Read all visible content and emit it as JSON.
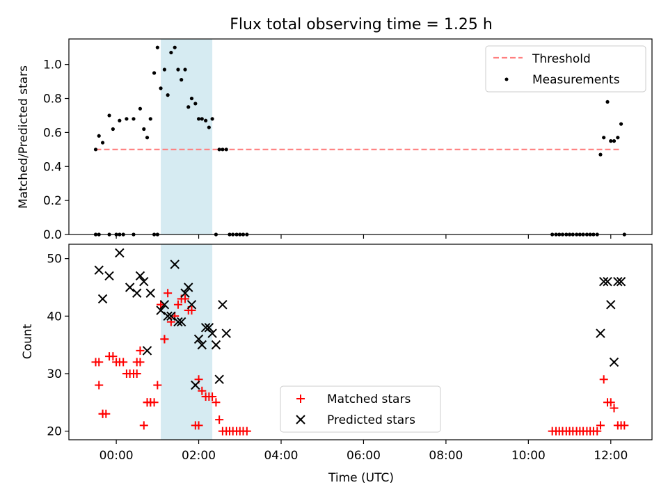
{
  "title": "Flux total observing time = 1.25 h",
  "colors": {
    "highlight": "#add8e6",
    "threshold": "#ff7f7f",
    "measurement": "#000000",
    "matched": "#ff0000",
    "predicted": "#000000"
  },
  "chart_data": [
    {
      "type": "scatter",
      "ylabel": "Matched/Predicted stars",
      "ylim": [
        0,
        1.15
      ],
      "yticks": [
        0.0,
        0.2,
        0.4,
        0.6,
        0.8,
        1.0
      ],
      "ytick_labels": [
        "0.0",
        "0.2",
        "0.4",
        "0.6",
        "0.8",
        "1.0"
      ],
      "x_unit": "hours since 00:00 UTC",
      "xlim": [
        -1.15,
        13.0
      ],
      "highlight_span": [
        1.08,
        2.33
      ],
      "legend_position": "upper right",
      "series": [
        {
          "name": "Threshold",
          "style": "dashed-line",
          "x": [
            -0.5,
            12.25
          ],
          "y": [
            0.5,
            0.5
          ]
        },
        {
          "name": "Measurements",
          "style": "dot",
          "x": [
            -0.5,
            -0.42,
            -0.33,
            -0.17,
            -0.08,
            0.08,
            0.25,
            0.42,
            0.58,
            0.67,
            0.75,
            0.83,
            0.92,
            1.0,
            1.08,
            1.17,
            1.25,
            1.33,
            1.42,
            1.5,
            1.58,
            1.67,
            1.75,
            1.83,
            1.92,
            2.0,
            2.08,
            2.17,
            2.25,
            2.33,
            2.5,
            2.58,
            2.67,
            -0.5,
            -0.42,
            -0.17,
            0.0,
            0.08,
            0.17,
            0.42,
            0.92,
            1.0,
            2.42,
            2.75,
            2.83,
            2.92,
            3.0,
            3.08,
            3.17,
            10.58,
            10.67,
            10.75,
            10.83,
            10.92,
            11.0,
            11.08,
            11.17,
            11.25,
            11.33,
            11.42,
            11.5,
            11.58,
            11.67,
            11.75,
            11.83,
            11.92,
            12.0,
            12.08,
            12.17,
            12.25,
            12.33
          ],
          "y": [
            0.5,
            0.58,
            0.54,
            0.7,
            0.62,
            0.67,
            0.68,
            0.68,
            0.74,
            0.62,
            0.57,
            0.68,
            0.95,
            1.1,
            0.86,
            0.97,
            0.82,
            1.07,
            1.1,
            0.97,
            0.91,
            0.97,
            0.75,
            0.8,
            0.77,
            0.68,
            0.68,
            0.67,
            0.63,
            0.68,
            0.5,
            0.5,
            0.5,
            0.0,
            0.0,
            0.0,
            0.0,
            0.0,
            0.0,
            0.0,
            0.0,
            0.0,
            0.0,
            0.0,
            0.0,
            0.0,
            0.0,
            0.0,
            0.0,
            0.0,
            0.0,
            0.0,
            0.0,
            0.0,
            0.0,
            0.0,
            0.0,
            0.0,
            0.0,
            0.0,
            0.0,
            0.0,
            0.0,
            0.47,
            0.57,
            0.78,
            0.55,
            0.55,
            0.57,
            0.65,
            0.0
          ]
        }
      ]
    },
    {
      "type": "scatter",
      "xlabel": "Time (UTC)",
      "ylabel": "Count",
      "ylim": [
        18.5,
        52.5
      ],
      "yticks": [
        20,
        30,
        40,
        50
      ],
      "ytick_labels": [
        "20",
        "30",
        "40",
        "50"
      ],
      "x_unit": "hours since 00:00 UTC",
      "xlim": [
        -1.15,
        13.0
      ],
      "xticks": [
        0,
        2,
        4,
        6,
        8,
        10,
        12
      ],
      "xtick_labels": [
        "00:00",
        "02:00",
        "04:00",
        "06:00",
        "08:00",
        "10:00",
        "12:00"
      ],
      "highlight_span": [
        1.08,
        2.33
      ],
      "legend_position": "lower center",
      "series": [
        {
          "name": "Matched stars",
          "style": "plus",
          "x": [
            -0.5,
            -0.42,
            -0.33,
            -0.25,
            -0.17,
            -0.08,
            0.0,
            0.08,
            0.17,
            0.25,
            0.33,
            0.42,
            0.5,
            0.58,
            0.67,
            0.75,
            0.83,
            0.92,
            1.0,
            1.08,
            1.17,
            1.25,
            1.33,
            1.42,
            1.5,
            1.58,
            1.67,
            1.75,
            1.83,
            1.92,
            2.0,
            2.08,
            2.17,
            2.25,
            2.33,
            2.42,
            2.5,
            2.58,
            2.67,
            2.75,
            2.83,
            2.92,
            3.0,
            3.08,
            3.17,
            -0.42,
            -0.33,
            0.5,
            0.58,
            0.75,
            0.83,
            1.08,
            1.17,
            2.0,
            10.58,
            10.67,
            10.75,
            10.83,
            10.92,
            11.0,
            11.08,
            11.17,
            11.25,
            11.33,
            11.42,
            11.5,
            11.58,
            11.67,
            11.75,
            11.83,
            11.92,
            12.0,
            12.08,
            12.17,
            12.25,
            12.33
          ],
          "y": [
            32,
            32,
            23,
            23,
            33,
            33,
            32,
            32,
            32,
            30,
            30,
            30,
            32,
            34,
            21,
            25,
            25,
            25,
            28,
            42,
            36,
            44,
            39,
            40,
            42,
            43,
            43,
            41,
            41,
            21,
            29,
            27,
            26,
            26,
            26,
            25,
            22,
            20,
            20,
            20,
            20,
            20,
            20,
            20,
            20,
            28,
            23,
            30,
            32,
            25,
            25,
            42,
            36,
            21,
            20,
            20,
            20,
            20,
            20,
            20,
            20,
            20,
            20,
            20,
            20,
            20,
            20,
            20,
            21,
            29,
            25,
            25,
            24,
            21,
            21,
            21
          ]
        },
        {
          "name": "Predicted stars",
          "style": "cross",
          "x": [
            -0.42,
            -0.33,
            -0.17,
            0.08,
            0.33,
            0.5,
            0.58,
            0.67,
            0.75,
            0.83,
            1.08,
            1.17,
            1.25,
            1.33,
            1.42,
            1.5,
            1.58,
            1.67,
            1.75,
            1.83,
            1.92,
            2.0,
            2.08,
            2.17,
            2.25,
            2.33,
            2.42,
            2.5,
            2.58,
            2.67,
            11.75,
            11.83,
            11.92,
            12.0,
            12.08,
            12.17,
            12.25
          ],
          "y": [
            48,
            43,
            47,
            51,
            45,
            44,
            47,
            46,
            34,
            44,
            41,
            42,
            40,
            40,
            49,
            39,
            39,
            44,
            45,
            42,
            28,
            36,
            35,
            38,
            38,
            37,
            35,
            29,
            42,
            37,
            37,
            46,
            46,
            42,
            32,
            46,
            46
          ]
        }
      ]
    }
  ]
}
